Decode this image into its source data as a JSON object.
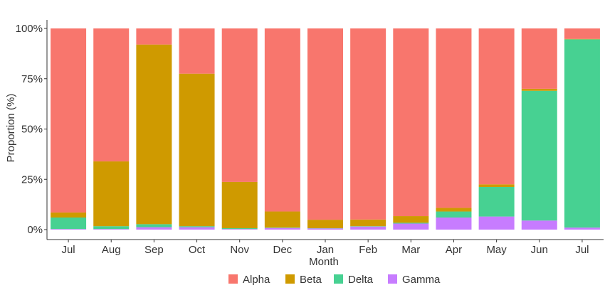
{
  "chart_data": {
    "type": "bar",
    "stacked": true,
    "title": "",
    "xlabel": "Month",
    "ylabel": "Proportion (%)",
    "ylim": [
      0,
      100
    ],
    "yticks": [
      "0%",
      "25%",
      "50%",
      "75%",
      "100%"
    ],
    "ytick_values": [
      0,
      25,
      50,
      75,
      100
    ],
    "grid": false,
    "legend_position": "bottom",
    "categories": [
      "Jul",
      "Aug",
      "Sep",
      "Oct",
      "Nov",
      "Dec",
      "Jan",
      "Feb",
      "Mar",
      "Apr",
      "May",
      "Jun",
      "Jul"
    ],
    "series": [
      {
        "name": "Gamma",
        "color": "#C77CFF",
        "values": [
          0.3,
          0.3,
          1.2,
          1.2,
          0.3,
          0.8,
          0.6,
          1.5,
          3.0,
          6.0,
          6.5,
          4.5,
          1.0
        ]
      },
      {
        "name": "Delta",
        "color": "#47D192",
        "values": [
          5.7,
          1.4,
          1.5,
          0.5,
          0.4,
          0.2,
          0.1,
          0.2,
          0.4,
          3.0,
          14.7,
          64.5,
          93.6
        ]
      },
      {
        "name": "Beta",
        "color": "#CF9A00",
        "values": [
          2.5,
          32.2,
          89.3,
          75.8,
          23.0,
          8.0,
          4.2,
          3.3,
          3.3,
          1.8,
          1.3,
          1.0,
          0.2
        ]
      },
      {
        "name": "Alpha",
        "color": "#F8766D",
        "values": [
          91.5,
          66.1,
          8.0,
          22.5,
          76.3,
          91.0,
          95.1,
          95.0,
          93.3,
          89.2,
          77.5,
          30.0,
          5.2
        ]
      }
    ],
    "legend_order": [
      "Alpha",
      "Beta",
      "Delta",
      "Gamma"
    ]
  }
}
